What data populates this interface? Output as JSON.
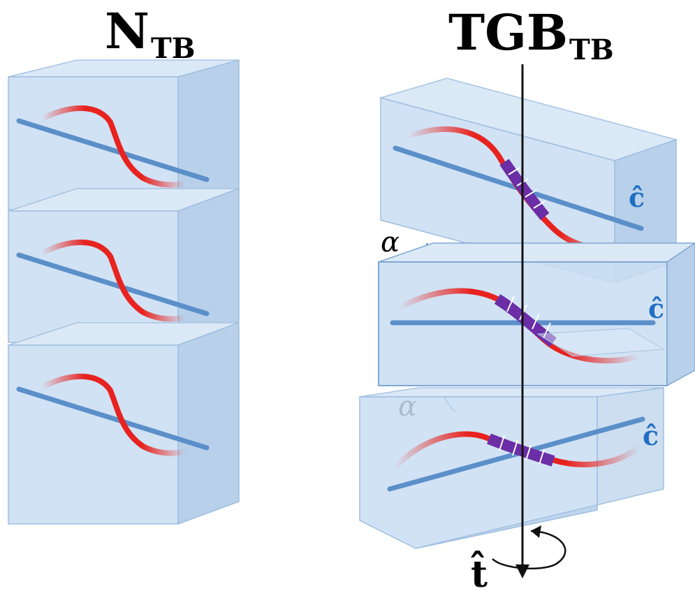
{
  "titles": {
    "left": {
      "main": "N",
      "sub": "TB"
    },
    "right": {
      "main": "TGB",
      "sub": "TB"
    }
  },
  "labels": {
    "alpha": "α",
    "c_hat": "ĉ",
    "t_hat": "t̂"
  },
  "colors": {
    "slab_fill": "#c9ddf2",
    "slab_edge": "#9fbfe0",
    "molecule_axis": "#5b8fc9",
    "bent_core": "#e8231f",
    "helix_segment": "#6b2ea6",
    "c_label": "#1f6fc2",
    "axis_line": "#111111"
  }
}
